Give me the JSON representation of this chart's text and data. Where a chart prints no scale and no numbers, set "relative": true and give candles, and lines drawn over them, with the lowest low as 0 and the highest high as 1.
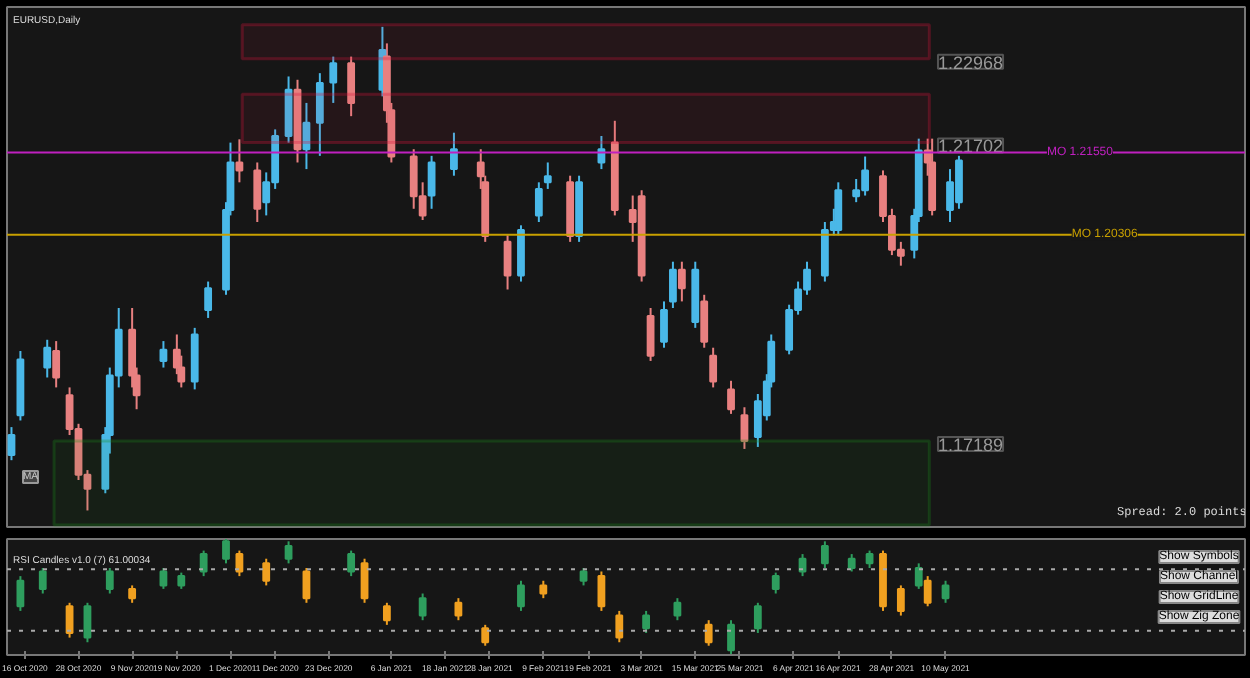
{
  "chart_data": [
    {
      "type": "candlestick",
      "title": "EURUSD,Daily",
      "x": [
        "2020-10-13",
        "2020-10-15",
        "2020-10-21",
        "2020-10-23",
        "2020-10-26",
        "2020-10-28",
        "2020-10-30",
        "2020-11-03",
        "2020-11-04",
        "2020-11-06",
        "2020-11-09",
        "2020-11-10",
        "2020-11-16",
        "2020-11-19",
        "2020-11-20",
        "2020-11-23",
        "2020-11-26",
        "2020-11-30",
        "2020-12-01",
        "2020-12-03",
        "2020-12-07",
        "2020-12-09",
        "2020-12-11",
        "2020-12-14",
        "2020-12-16",
        "2020-12-18",
        "2020-12-21",
        "2020-12-24",
        "2020-12-28",
        "2021-01-04",
        "2021-01-05",
        "2021-01-06",
        "2021-01-11",
        "2021-01-13",
        "2021-01-15",
        "2021-01-20",
        "2021-01-26",
        "2021-01-27",
        "2021-02-01",
        "2021-02-04",
        "2021-02-08",
        "2021-02-10",
        "2021-02-15",
        "2021-02-17",
        "2021-02-22",
        "2021-02-25",
        "2021-03-01",
        "2021-03-03",
        "2021-03-05",
        "2021-03-08",
        "2021-03-10",
        "2021-03-12",
        "2021-03-15",
        "2021-03-17",
        "2021-03-19",
        "2021-03-23",
        "2021-03-26",
        "2021-03-29",
        "2021-03-31",
        "2021-04-01",
        "2021-04-05",
        "2021-04-07",
        "2021-04-09",
        "2021-04-13",
        "2021-04-15",
        "2021-04-16",
        "2021-04-20",
        "2021-04-22",
        "2021-04-26",
        "2021-04-28",
        "2021-04-30",
        "2021-05-03",
        "2021-05-04",
        "2021-05-06",
        "2021-05-07",
        "2021-05-11",
        "2021-05-13"
      ],
      "ohlc": [
        [
          1.1698,
          1.174,
          1.169,
          1.1728
        ],
        [
          1.1758,
          1.1855,
          1.175,
          1.1842
        ],
        [
          1.183,
          1.1872,
          1.1815,
          1.186
        ],
        [
          1.1855,
          1.187,
          1.18,
          1.1815
        ],
        [
          1.1788,
          1.18,
          1.1728,
          1.1737
        ],
        [
          1.1737,
          1.1745,
          1.166,
          1.1668
        ],
        [
          1.1668,
          1.1675,
          1.1614,
          1.1647
        ],
        [
          1.1647,
          1.174,
          1.164,
          1.1728
        ],
        [
          1.1728,
          1.183,
          1.17,
          1.1818
        ],
        [
          1.1818,
          1.192,
          1.18,
          1.1887
        ],
        [
          1.1887,
          1.192,
          1.18,
          1.1818
        ],
        [
          1.1818,
          1.183,
          1.1767,
          1.1788
        ],
        [
          1.184,
          1.187,
          1.183,
          1.1857
        ],
        [
          1.1857,
          1.188,
          1.182,
          1.183
        ],
        [
          1.183,
          1.1848,
          1.18,
          1.1809
        ],
        [
          1.1809,
          1.189,
          1.1797,
          1.188
        ],
        [
          1.1917,
          1.196,
          1.1905,
          1.195
        ],
        [
          1.1948,
          1.208,
          1.194,
          1.2068
        ],
        [
          1.2068,
          1.217,
          1.206,
          1.214
        ],
        [
          1.214,
          1.2175,
          1.211,
          1.2128
        ],
        [
          1.2128,
          1.214,
          1.205,
          1.207
        ],
        [
          1.208,
          1.2125,
          1.206,
          1.211
        ],
        [
          1.211,
          1.219,
          1.21,
          1.218
        ],
        [
          1.218,
          1.227,
          1.217,
          1.225
        ],
        [
          1.225,
          1.2265,
          1.214,
          1.216
        ],
        [
          1.216,
          1.223,
          1.213,
          1.22
        ],
        [
          1.22,
          1.2275,
          1.215,
          1.226
        ],
        [
          1.2261,
          1.23,
          1.223,
          1.229
        ],
        [
          1.229,
          1.23,
          1.221,
          1.223
        ],
        [
          1.225,
          1.2345,
          1.224,
          1.231
        ],
        [
          1.23,
          1.232,
          1.22,
          1.2219
        ],
        [
          1.2219,
          1.223,
          1.214,
          1.2149
        ],
        [
          1.2149,
          1.216,
          1.207,
          1.2089
        ],
        [
          1.2089,
          1.211,
          1.2053,
          1.206
        ],
        [
          1.209,
          1.215,
          1.207,
          1.214
        ],
        [
          1.213,
          1.2185,
          1.212,
          1.216
        ],
        [
          1.214,
          1.216,
          1.21,
          1.2119
        ],
        [
          1.211,
          1.212,
          1.202,
          1.2029
        ],
        [
          1.202,
          1.203,
          1.1948,
          1.1969
        ],
        [
          1.1969,
          1.2045,
          1.196,
          1.2038
        ],
        [
          1.206,
          1.211,
          1.205,
          1.21
        ],
        [
          1.211,
          1.214,
          1.21,
          1.2119
        ],
        [
          1.211,
          1.212,
          1.202,
          1.2029
        ],
        [
          1.2029,
          1.212,
          1.202,
          1.211
        ],
        [
          1.214,
          1.218,
          1.213,
          1.216
        ],
        [
          1.217,
          1.2203,
          1.206,
          1.2068
        ],
        [
          1.2068,
          1.209,
          1.202,
          1.205
        ],
        [
          1.2089,
          1.2098,
          1.196,
          1.1969
        ],
        [
          1.1908,
          1.192,
          1.184,
          1.1848
        ],
        [
          1.1869,
          1.193,
          1.186,
          1.1917
        ],
        [
          1.193,
          1.199,
          1.192,
          1.1978
        ],
        [
          1.1978,
          1.199,
          1.193,
          1.195
        ],
        [
          1.1899,
          1.199,
          1.189,
          1.1978
        ],
        [
          1.193,
          1.194,
          1.186,
          1.1869
        ],
        [
          1.1848,
          1.186,
          1.18,
          1.1809
        ],
        [
          1.1797,
          1.181,
          1.176,
          1.1767
        ],
        [
          1.1758,
          1.177,
          1.1707,
          1.1719
        ],
        [
          1.1725,
          1.179,
          1.171,
          1.1779
        ],
        [
          1.1758,
          1.182,
          1.175,
          1.1809
        ],
        [
          1.1809,
          1.188,
          1.18,
          1.1869
        ],
        [
          1.1857,
          1.1925,
          1.185,
          1.1917
        ],
        [
          1.1917,
          1.196,
          1.191,
          1.1948
        ],
        [
          1.1948,
          1.199,
          1.194,
          1.1978
        ],
        [
          1.1969,
          1.205,
          1.196,
          1.2038
        ],
        [
          1.2038,
          1.207,
          1.203,
          1.205
        ],
        [
          1.2038,
          1.211,
          1.203,
          1.2098
        ],
        [
          1.2089,
          1.2115,
          1.208,
          1.2098
        ],
        [
          1.2098,
          1.2149,
          1.209,
          1.2128
        ],
        [
          1.2119,
          1.2128,
          1.205,
          1.2059
        ],
        [
          1.2059,
          1.207,
          1.2,
          1.2008
        ],
        [
          1.2008,
          1.202,
          1.1984,
          1.1999
        ],
        [
          1.2008,
          1.207,
          1.1995,
          1.2059
        ],
        [
          1.2059,
          1.2176,
          1.205,
          1.2158
        ],
        [
          1.2158,
          1.2176,
          1.212,
          1.214
        ],
        [
          1.214,
          1.2176,
          1.206,
          1.2068
        ],
        [
          1.2068,
          1.213,
          1.205,
          1.211
        ],
        [
          1.208,
          1.215,
          1.207,
          1.2143
        ]
      ],
      "colors": [
        "#4ab8e8",
        "#4ab8e8",
        "#4ab8e8",
        "#e88080",
        "#e88080",
        "#e88080",
        "#e88080",
        "#4ab8e8",
        "#4ab8e8",
        "#4ab8e8",
        "#e88080",
        "#e88080",
        "#4ab8e8",
        "#e88080",
        "#e88080",
        "#4ab8e8",
        "#4ab8e8",
        "#4ab8e8",
        "#4ab8e8",
        "#e88080",
        "#e88080",
        "#4ab8e8",
        "#4ab8e8",
        "#4ab8e8",
        "#e88080",
        "#4ab8e8",
        "#4ab8e8",
        "#4ab8e8",
        "#e88080",
        "#4ab8e8",
        "#e88080",
        "#e88080",
        "#e88080",
        "#e88080",
        "#4ab8e8",
        "#4ab8e8",
        "#e88080",
        "#e88080",
        "#e88080",
        "#4ab8e8",
        "#4ab8e8",
        "#4ab8e8",
        "#e88080",
        "#4ab8e8",
        "#4ab8e8",
        "#e88080",
        "#e88080",
        "#e88080",
        "#e88080",
        "#4ab8e8",
        "#4ab8e8",
        "#e88080",
        "#4ab8e8",
        "#e88080",
        "#e88080",
        "#e88080",
        "#e88080",
        "#4ab8e8",
        "#4ab8e8",
        "#4ab8e8",
        "#4ab8e8",
        "#4ab8e8",
        "#4ab8e8",
        "#4ab8e8",
        "#4ab8e8",
        "#4ab8e8",
        "#4ab8e8",
        "#4ab8e8",
        "#e88080",
        "#e88080",
        "#e88080",
        "#4ab8e8",
        "#4ab8e8",
        "#e88080",
        "#e88080",
        "#4ab8e8",
        "#4ab8e8"
      ],
      "xlim": [
        "2020-10-12",
        "2021-07-16"
      ],
      "ylim": [
        1.1589,
        1.2375
      ],
      "tick_labels": false,
      "bands": [
        {
          "axis": "y",
          "from": 1.22968,
          "to": 1.2348,
          "label": "1.22968",
          "color": "#dc143c"
        },
        {
          "axis": "y",
          "from": 1.21702,
          "to": 1.2243,
          "label": "1.21702",
          "color": "#dc143c"
        },
        {
          "axis": "y",
          "from": 1.1592,
          "to": 1.17189,
          "label": "1.17189",
          "color": "#1a8a1a"
        }
      ],
      "ref_lines": [
        {
          "axis": "y",
          "value": 1.2155,
          "label": "MO 1.21550",
          "color": "#c020c0"
        },
        {
          "axis": "y",
          "value": 1.20306,
          "label": "MO 1.20306",
          "color": "#c8a000"
        }
      ],
      "annotations": [
        "MA",
        "Spread: 2.0 points"
      ]
    },
    {
      "type": "candlestick",
      "title": "RSI Candles v1.0 (7) 61.00034",
      "relative": true,
      "x": [
        "2020-10-15",
        "2020-10-20",
        "2020-10-26",
        "2020-10-30",
        "2020-11-04",
        "2020-11-09",
        "2020-11-16",
        "2020-11-20",
        "2020-11-25",
        "2020-11-30",
        "2020-12-03",
        "2020-12-09",
        "2020-12-14",
        "2020-12-18",
        "2020-12-28",
        "2020-12-31",
        "2021-01-05",
        "2021-01-13",
        "2021-01-21",
        "2021-01-27",
        "2021-02-04",
        "2021-02-09",
        "2021-02-18",
        "2021-02-22",
        "2021-02-26",
        "2021-03-04",
        "2021-03-11",
        "2021-03-18",
        "2021-03-23",
        "2021-03-29",
        "2021-04-02",
        "2021-04-08",
        "2021-04-13",
        "2021-04-19",
        "2021-04-23",
        "2021-04-26",
        "2021-04-30",
        "2021-05-04",
        "2021-05-06",
        "2021-05-10"
      ],
      "ohlc": [
        [
          0.42,
          0.68,
          0.38,
          0.64
        ],
        [
          0.57,
          0.75,
          0.53,
          0.72
        ],
        [
          0.42,
          0.45,
          0.15,
          0.19
        ],
        [
          0.15,
          0.45,
          0.11,
          0.42
        ],
        [
          0.57,
          0.75,
          0.53,
          0.72
        ],
        [
          0.57,
          0.6,
          0.45,
          0.49
        ],
        [
          0.6,
          0.75,
          0.57,
          0.72
        ],
        [
          0.6,
          0.71,
          0.57,
          0.68
        ],
        [
          0.72,
          0.9,
          0.68,
          0.87
        ],
        [
          0.83,
          1.0,
          0.79,
          0.98
        ],
        [
          0.87,
          0.9,
          0.68,
          0.72
        ],
        [
          0.79,
          0.83,
          0.6,
          0.64
        ],
        [
          0.83,
          0.98,
          0.79,
          0.94
        ],
        [
          0.72,
          0.75,
          0.45,
          0.49
        ],
        [
          0.72,
          0.9,
          0.68,
          0.87
        ],
        [
          0.79,
          0.83,
          0.45,
          0.49
        ],
        [
          0.42,
          0.45,
          0.26,
          0.3
        ],
        [
          0.34,
          0.53,
          0.3,
          0.49
        ],
        [
          0.45,
          0.49,
          0.3,
          0.34
        ],
        [
          0.23,
          0.26,
          0.08,
          0.11
        ],
        [
          0.42,
          0.64,
          0.38,
          0.6
        ],
        [
          0.6,
          0.64,
          0.49,
          0.53
        ],
        [
          0.64,
          0.75,
          0.6,
          0.72
        ],
        [
          0.68,
          0.72,
          0.38,
          0.42
        ],
        [
          0.34,
          0.38,
          0.11,
          0.15
        ],
        [
          0.23,
          0.38,
          0.19,
          0.34
        ],
        [
          0.34,
          0.49,
          0.3,
          0.45
        ],
        [
          0.26,
          0.3,
          0.08,
          0.11
        ],
        [
          0.04,
          0.3,
          0.0,
          0.26
        ],
        [
          0.23,
          0.45,
          0.19,
          0.42
        ],
        [
          0.57,
          0.71,
          0.53,
          0.68
        ],
        [
          0.72,
          0.87,
          0.68,
          0.83
        ],
        [
          0.79,
          0.98,
          0.75,
          0.94
        ],
        [
          0.75,
          0.87,
          0.72,
          0.83
        ],
        [
          0.79,
          0.9,
          0.75,
          0.87
        ],
        [
          0.87,
          0.9,
          0.38,
          0.42
        ],
        [
          0.57,
          0.6,
          0.34,
          0.38
        ],
        [
          0.6,
          0.79,
          0.57,
          0.75
        ],
        [
          0.64,
          0.68,
          0.42,
          0.45
        ],
        [
          0.49,
          0.64,
          0.45,
          0.6
        ]
      ],
      "colors": [
        "#2e9e5e",
        "#2e9e5e",
        "#f0a020",
        "#2e9e5e",
        "#2e9e5e",
        "#f0a020",
        "#2e9e5e",
        "#2e9e5e",
        "#2e9e5e",
        "#2e9e5e",
        "#f0a020",
        "#f0a020",
        "#2e9e5e",
        "#f0a020",
        "#2e9e5e",
        "#f0a020",
        "#f0a020",
        "#2e9e5e",
        "#f0a020",
        "#f0a020",
        "#2e9e5e",
        "#f0a020",
        "#2e9e5e",
        "#f0a020",
        "#f0a020",
        "#2e9e5e",
        "#2e9e5e",
        "#f0a020",
        "#2e9e5e",
        "#2e9e5e",
        "#2e9e5e",
        "#2e9e5e",
        "#2e9e5e",
        "#2e9e5e",
        "#2e9e5e",
        "#f0a020",
        "#f0a020",
        "#2e9e5e",
        "#f0a020",
        "#2e9e5e"
      ],
      "xlim": [
        "2020-10-12",
        "2021-07-16"
      ],
      "tick_labels": "x",
      "xticks": [
        {
          "value": "2020-10-16",
          "label": "16 Oct 2020"
        },
        {
          "value": "2020-10-28",
          "label": "28 Oct 2020"
        },
        {
          "value": "2020-11-09",
          "label": "9 Nov 2020"
        },
        {
          "value": "2020-11-19",
          "label": "19 Nov 2020"
        },
        {
          "value": "2020-12-01",
          "label": "1 Dec 2020"
        },
        {
          "value": "2020-12-11",
          "label": "11 Dec 2020"
        },
        {
          "value": "2020-12-23",
          "label": "23 Dec 2020"
        },
        {
          "value": "2021-01-06",
          "label": "6 Jan 2021"
        },
        {
          "value": "2021-01-18",
          "label": "18 Jan 2021"
        },
        {
          "value": "2021-01-28",
          "label": "28 Jan 2021"
        },
        {
          "value": "2021-02-09",
          "label": "9 Feb 2021"
        },
        {
          "value": "2021-02-19",
          "label": "19 Feb 2021"
        },
        {
          "value": "2021-03-03",
          "label": "3 Mar 2021"
        },
        {
          "value": "2021-03-15",
          "label": "15 Mar 2021"
        },
        {
          "value": "2021-03-25",
          "label": "25 Mar 2021"
        },
        {
          "value": "2021-04-06",
          "label": "6 Apr 2021"
        },
        {
          "value": "2021-04-16",
          "label": "16 Apr 2021"
        },
        {
          "value": "2021-04-28",
          "label": "28 Apr 2021"
        },
        {
          "value": "2021-05-10",
          "label": "10 May 2021"
        }
      ],
      "ref_lines": [
        {
          "axis": "y",
          "value": 0.74,
          "color": "#aaaaaa",
          "line_style": "dotted"
        },
        {
          "axis": "y",
          "value": 0.21,
          "color": "#aaaaaa",
          "line_style": "dotted"
        }
      ],
      "annotations": [
        "Show Symbols",
        "Show Channel",
        "Show GridLine",
        "Show Zig Zone"
      ]
    }
  ]
}
